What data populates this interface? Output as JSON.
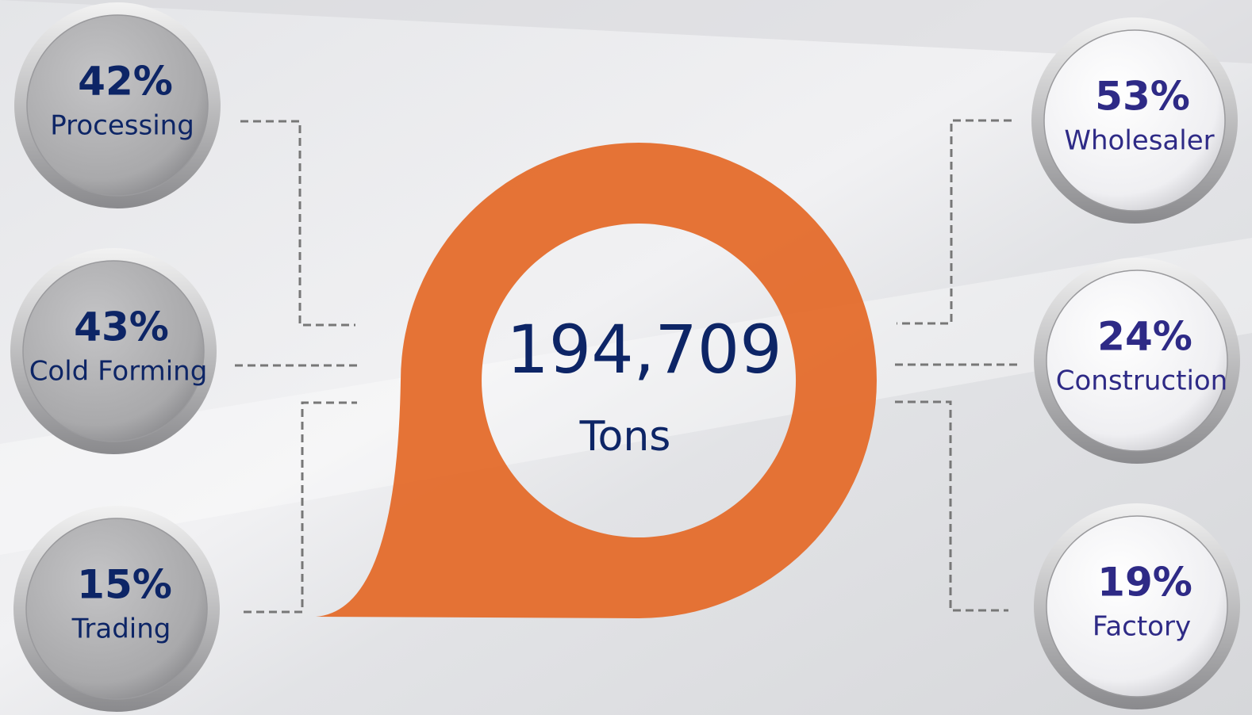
{
  "center": {
    "value": "194,709",
    "unit": "Tons"
  },
  "left": [
    {
      "percent": "42%",
      "label": "Processing"
    },
    {
      "percent": "43%",
      "label": "Cold Forming"
    },
    {
      "percent": "15%",
      "label": "Trading"
    }
  ],
  "right": [
    {
      "percent": "53%",
      "label": "Wholesaler"
    },
    {
      "percent": "24%",
      "label": "Construction"
    },
    {
      "percent": "19%",
      "label": "Factory"
    }
  ]
}
